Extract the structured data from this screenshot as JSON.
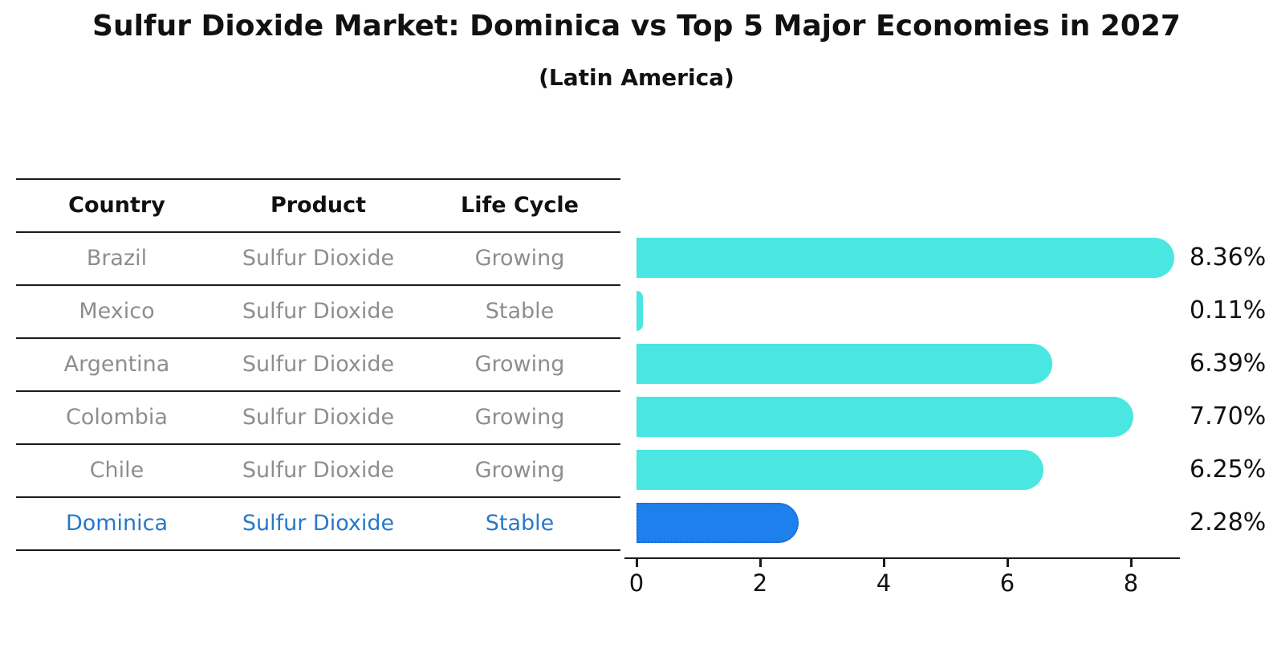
{
  "title": "Sulfur Dioxide Market: Dominica vs Top 5 Major Economies in 2027",
  "subtitle": "(Latin America)",
  "table": {
    "headers": [
      "Country",
      "Product",
      "Life Cycle"
    ],
    "rows": [
      {
        "country": "Brazil",
        "product": "Sulfur Dioxide",
        "life_cycle": "Growing",
        "highlight": false
      },
      {
        "country": "Mexico",
        "product": "Sulfur Dioxide",
        "life_cycle": "Stable",
        "highlight": false
      },
      {
        "country": "Argentina",
        "product": "Sulfur Dioxide",
        "life_cycle": "Growing",
        "highlight": false
      },
      {
        "country": "Colombia",
        "product": "Sulfur Dioxide",
        "life_cycle": "Growing",
        "highlight": false
      },
      {
        "country": "Chile",
        "product": "Sulfur Dioxide",
        "life_cycle": "Growing",
        "highlight": false
      },
      {
        "country": "Dominica",
        "product": "Sulfur Dioxide",
        "life_cycle": "Stable",
        "highlight": true
      }
    ]
  },
  "chart_data": {
    "type": "bar",
    "orientation": "horizontal",
    "title": "Sulfur Dioxide Market: Dominica vs Top 5 Major Economies in 2027",
    "subtitle": "(Latin America)",
    "categories": [
      "Brazil",
      "Mexico",
      "Argentina",
      "Colombia",
      "Chile",
      "Dominica"
    ],
    "values": [
      8.36,
      0.11,
      6.39,
      7.7,
      6.25,
      2.28
    ],
    "value_labels": [
      "8.36%",
      "0.11%",
      "6.39%",
      "7.70%",
      "6.25%",
      "2.28%"
    ],
    "xticks": [
      0,
      2,
      4,
      6,
      8
    ],
    "xtick_labels": [
      "0",
      "2",
      "4",
      "6",
      "8"
    ],
    "xlim": [
      0,
      8.8
    ],
    "grid": false,
    "legend": false,
    "highlight_index": 5,
    "colors": {
      "default_bar": "#4ae6e2",
      "highlight_bar": "#1e80ec",
      "highlight_border": "#1668d6",
      "highlight_text": "#2878c8",
      "row_text": "#8e8e8e",
      "header_text": "#111111",
      "line": "#1a1a1a"
    }
  }
}
